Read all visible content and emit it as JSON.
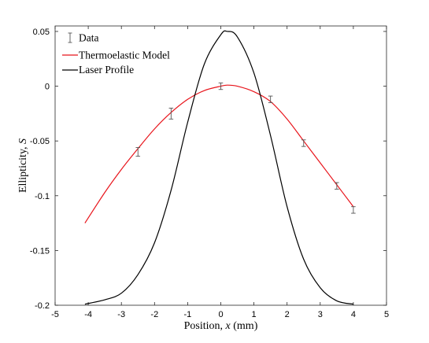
{
  "chart_data": {
    "type": "line",
    "xlabel": {
      "prefix": "Position, ",
      "var": "x",
      "suffix": " (mm)"
    },
    "ylabel": {
      "prefix": "Ellipticity, ",
      "var": "S",
      "suffix": ""
    },
    "xlim": [
      -5,
      5
    ],
    "ylim": [
      -0.2,
      0.055
    ],
    "xticks": [
      -5,
      -4,
      -3,
      -2,
      -1,
      0,
      1,
      2,
      3,
      4,
      5
    ],
    "xtick_labels": [
      "-5",
      "-4",
      "-3",
      "-2",
      "-1",
      "0",
      "1",
      "2",
      "3",
      "4",
      "5"
    ],
    "yticks": [
      0.05,
      0,
      -0.05,
      -0.1,
      -0.15,
      -0.2
    ],
    "ytick_labels": [
      "0.05",
      "0",
      "-0.05",
      "-0.1",
      "-0.15",
      "-0.2"
    ],
    "grid": false,
    "legend_position": "top-left",
    "legend": {
      "data": "Data",
      "model": "Thermoelastic Model",
      "laser": "Laser Profile"
    },
    "colors": {
      "data": "#555555",
      "model": "#e8141b",
      "laser": "#000000",
      "axes": "#262626"
    },
    "data_points": {
      "x": [
        -2.5,
        -1.5,
        0.0,
        1.5,
        2.5,
        3.5,
        4.0
      ],
      "y": [
        -0.06,
        -0.025,
        0.0,
        -0.012,
        -0.052,
        -0.091,
        -0.113
      ],
      "err": [
        0.004,
        0.005,
        0.003,
        0.003,
        0.003,
        0.003,
        0.003
      ]
    },
    "series": [
      {
        "name": "Thermoelastic Model",
        "x": [
          -4.1,
          -3.5,
          -3.0,
          -2.5,
          -2.0,
          -1.5,
          -1.0,
          -0.5,
          0.0,
          0.2,
          0.5,
          1.0,
          1.5,
          2.0,
          2.5,
          3.0,
          3.5,
          4.0
        ],
        "y": [
          -0.125,
          -0.097,
          -0.076,
          -0.057,
          -0.039,
          -0.024,
          -0.012,
          -0.004,
          0.0,
          0.001,
          0.0,
          -0.005,
          -0.014,
          -0.03,
          -0.05,
          -0.07,
          -0.09,
          -0.11
        ]
      },
      {
        "name": "Laser Profile",
        "x": [
          -4.1,
          -3.5,
          -3.0,
          -2.5,
          -2.0,
          -1.5,
          -1.0,
          -0.5,
          0.0,
          0.2,
          0.5,
          1.0,
          1.5,
          2.0,
          2.5,
          3.0,
          3.5,
          4.0
        ],
        "y": [
          -0.199,
          -0.195,
          -0.189,
          -0.172,
          -0.143,
          -0.095,
          -0.033,
          0.02,
          0.047,
          0.05,
          0.045,
          0.012,
          -0.045,
          -0.11,
          -0.158,
          -0.184,
          -0.196,
          -0.199
        ]
      }
    ]
  }
}
